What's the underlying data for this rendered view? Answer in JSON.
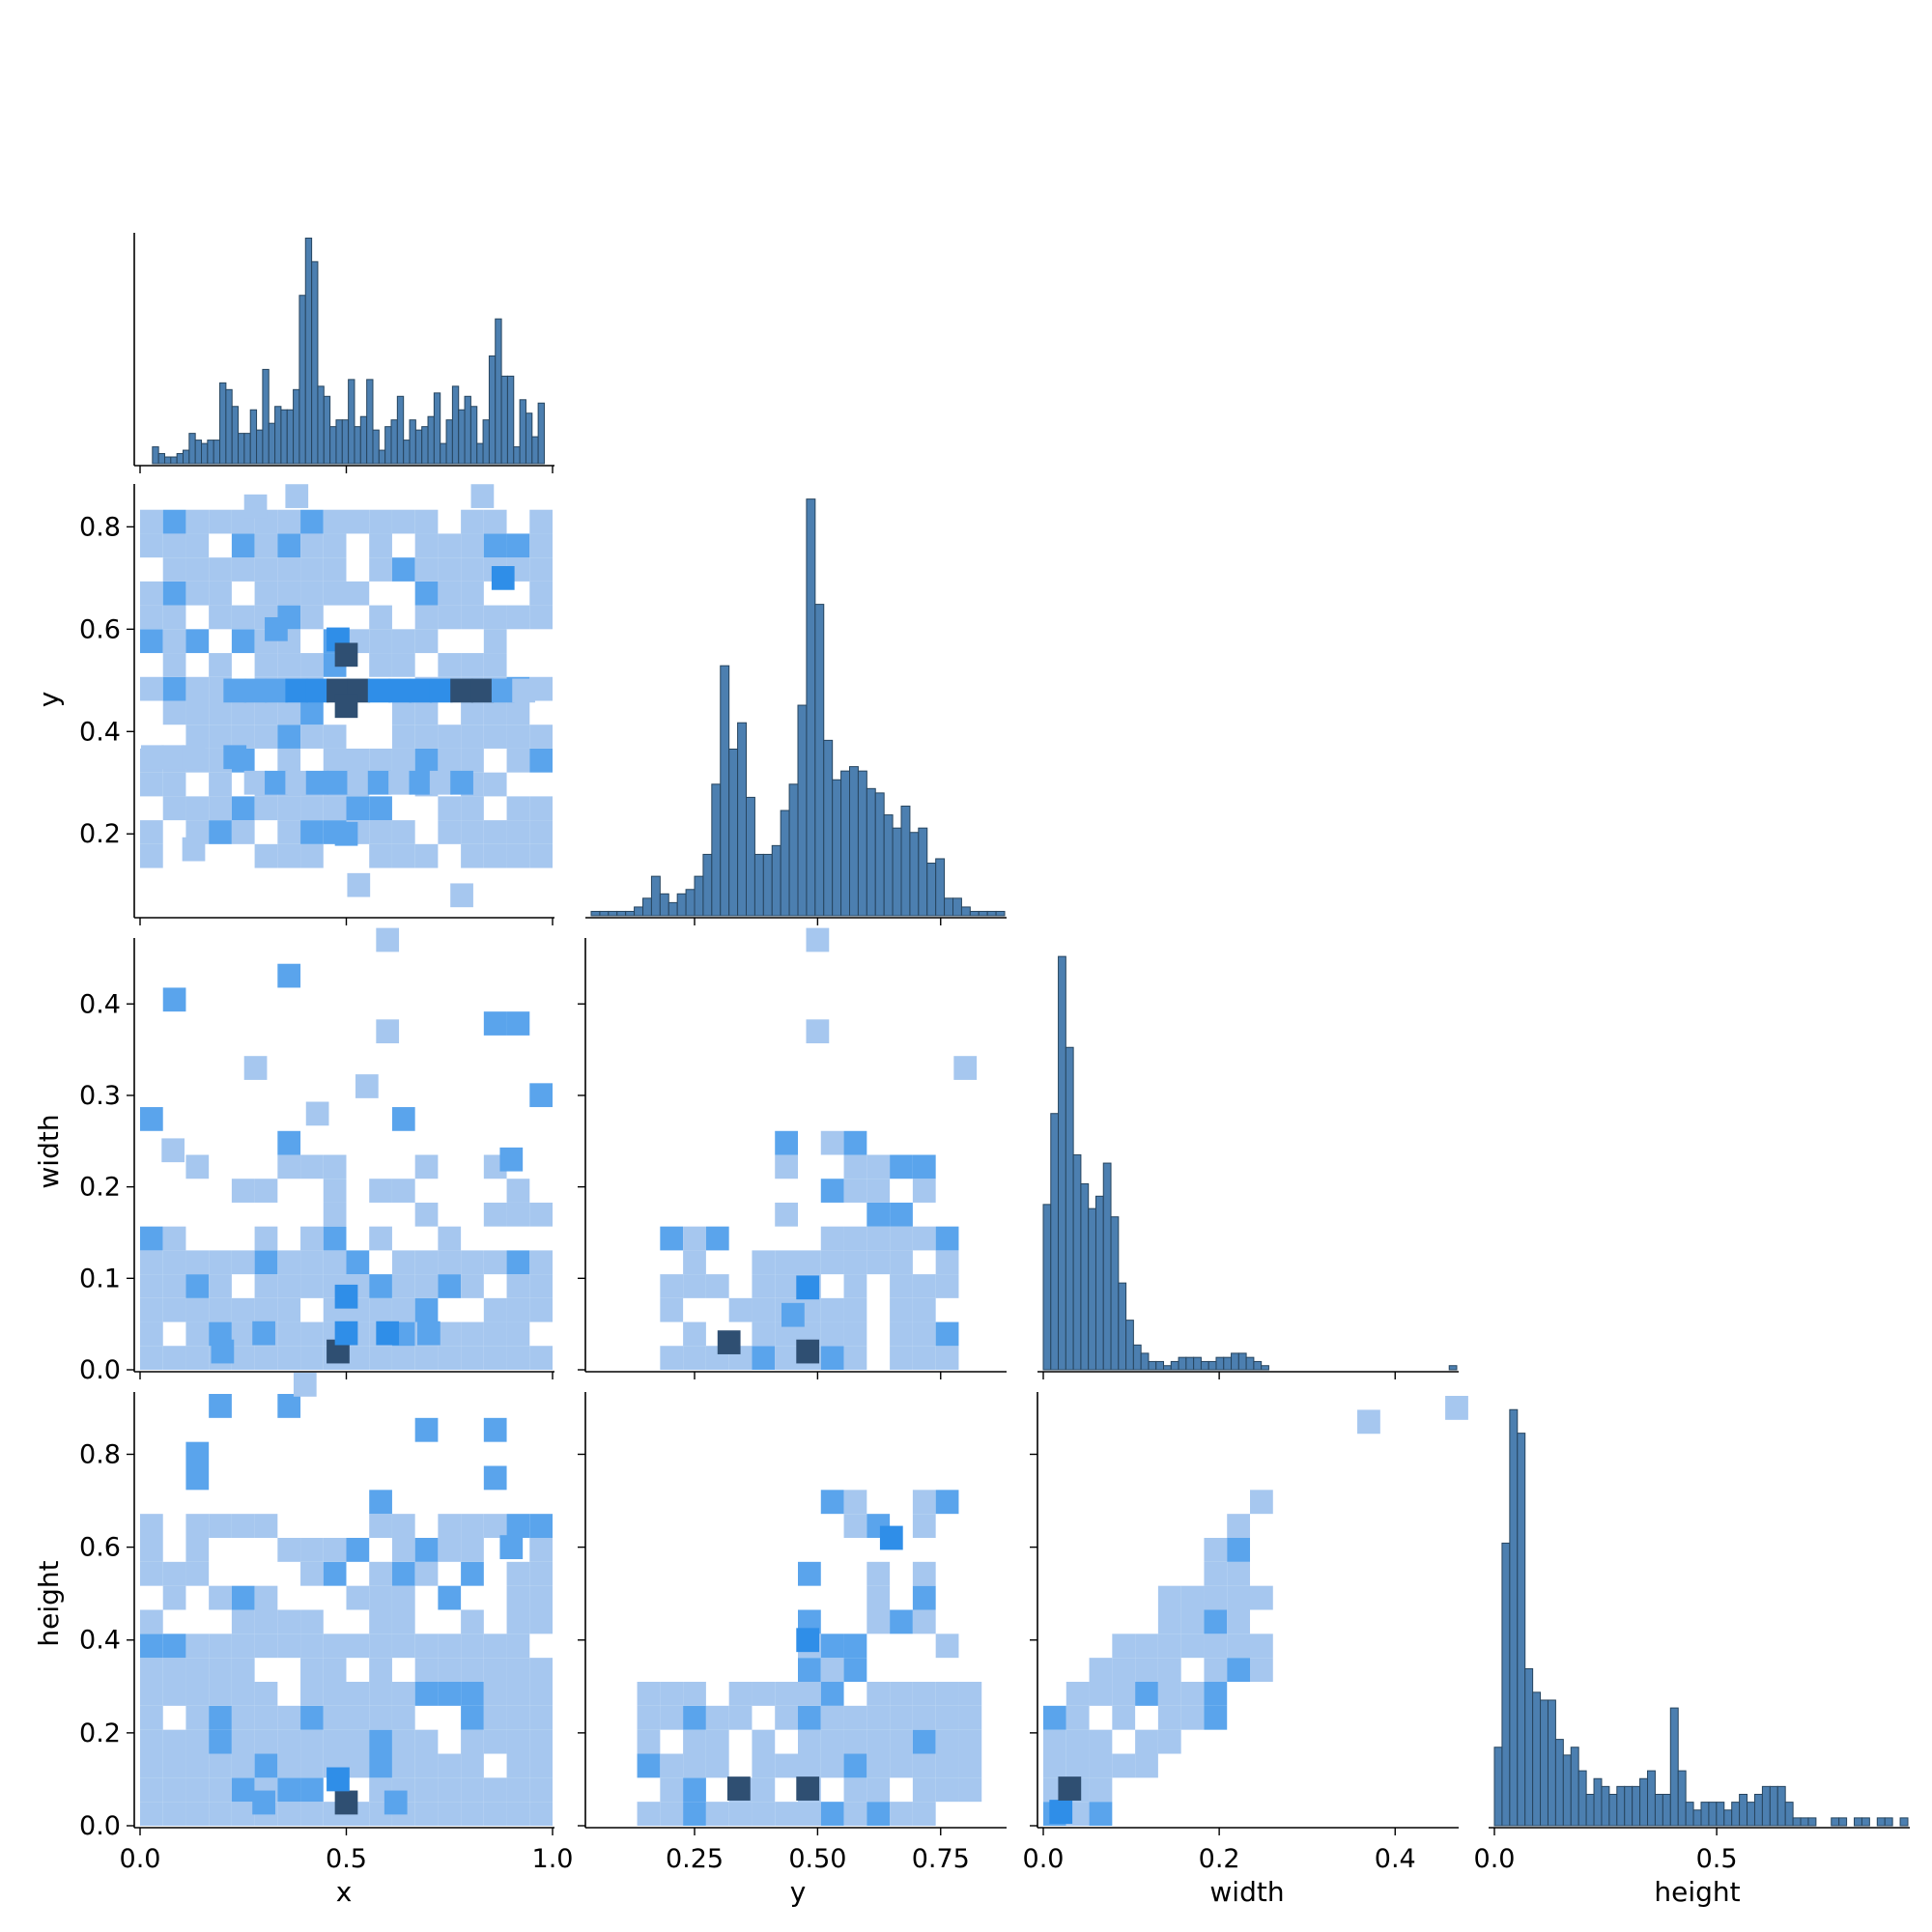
{
  "chart_data": {
    "type": "heatmap",
    "variables": [
      "x",
      "y",
      "width",
      "height"
    ],
    "ranges": {
      "x": [
        0.0,
        1.0
      ],
      "y": [
        0.04,
        0.88
      ],
      "width": [
        0.0,
        0.47
      ],
      "height": [
        0.0,
        0.93
      ]
    },
    "ticks": {
      "x": {
        "values": [
          0.0,
          0.5,
          1.0
        ],
        "labels": [
          "0.0",
          "0.5",
          "1.0"
        ]
      },
      "y_left": {
        "values": [
          0.2,
          0.4,
          0.6,
          0.8
        ],
        "labels": [
          "0.2",
          "0.4",
          "0.6",
          "0.8"
        ]
      },
      "y_bottom": {
        "values": [
          0.25,
          0.5,
          0.75
        ],
        "labels": [
          "0.25",
          "0.50",
          "0.75"
        ]
      },
      "width": {
        "values": [
          0.0,
          0.1,
          0.2,
          0.3,
          0.4
        ],
        "labels": [
          "0.0",
          "0.1",
          "0.2",
          "0.3",
          "0.4"
        ]
      },
      "width_bottom": {
        "values": [
          0.0,
          0.2,
          0.4
        ],
        "labels": [
          "0.0",
          "0.2",
          "0.4"
        ]
      },
      "height": {
        "values": [
          0.0,
          0.2,
          0.4,
          0.6,
          0.8
        ],
        "labels": [
          "0.0",
          "0.2",
          "0.4",
          "0.6",
          "0.8"
        ]
      },
      "height_bottom": {
        "values": [
          0.0,
          0.5
        ],
        "labels": [
          "0.0",
          "0.5"
        ]
      }
    },
    "histograms": {
      "x": {
        "range": [
          0.03,
          0.98
        ],
        "counts": [
          5,
          3,
          2,
          2,
          3,
          4,
          9,
          7,
          6,
          7,
          7,
          24,
          22,
          17,
          9,
          9,
          16,
          10,
          28,
          12,
          17,
          16,
          16,
          22,
          50,
          67,
          60,
          23,
          20,
          11,
          13,
          13,
          25,
          11,
          14,
          25,
          10,
          4,
          11,
          13,
          20,
          7,
          13,
          10,
          11,
          14,
          21,
          6,
          13,
          23,
          16,
          20,
          17,
          6,
          13,
          32,
          43,
          26,
          26,
          5,
          19,
          15,
          8,
          18
        ],
        "peak": 68
      },
      "y": {
        "range": [
          0.04,
          0.88
        ],
        "counts": [
          1,
          1,
          1,
          1,
          1,
          2,
          4,
          9,
          5,
          3,
          5,
          6,
          9,
          14,
          30,
          57,
          38,
          44,
          27,
          14,
          14,
          16,
          24,
          30,
          48,
          95,
          71,
          40,
          31,
          33,
          34,
          33,
          29,
          28,
          23,
          20,
          25,
          19,
          20,
          12,
          13,
          4,
          4,
          2,
          1,
          1,
          1,
          1
        ],
        "peak": 98
      },
      "width": {
        "range": [
          0.0,
          0.47
        ],
        "counts": [
          40,
          62,
          100,
          78,
          52,
          45,
          39,
          42,
          50,
          37,
          21,
          12,
          6,
          4,
          2,
          2,
          1,
          2,
          3,
          3,
          3,
          2,
          2,
          3,
          3,
          4,
          4,
          3,
          2,
          1,
          0,
          0,
          0,
          0,
          0,
          0,
          0,
          0,
          0,
          0,
          0,
          0,
          0,
          0,
          0,
          0,
          0,
          0,
          0,
          0,
          0,
          0,
          0,
          0,
          1
        ],
        "peak": 104
      },
      "height": {
        "range": [
          0.0,
          0.93
        ],
        "counts": [
          10,
          36,
          53,
          50,
          20,
          17,
          16,
          16,
          11,
          9,
          10,
          7,
          4,
          6,
          5,
          4,
          5,
          5,
          5,
          6,
          7,
          4,
          4,
          15,
          7,
          3,
          2,
          3,
          3,
          3,
          2,
          3,
          4,
          3,
          4,
          5,
          5,
          5,
          3,
          1,
          1,
          1,
          0,
          0,
          1,
          1,
          0,
          1,
          1,
          0,
          1,
          1,
          0,
          1
        ],
        "peak": 55
      }
    },
    "heatmap_cells": {
      "y_vs_x": [
        [
          0.03,
          0.35,
          1
        ],
        [
          0.08,
          0.35,
          1
        ],
        [
          0.13,
          0.35,
          1
        ],
        [
          0.23,
          0.35,
          2
        ],
        [
          0.28,
          0.3,
          1
        ],
        [
          0.33,
          0.3,
          2
        ],
        [
          0.38,
          0.3,
          1
        ],
        [
          0.43,
          0.3,
          2
        ],
        [
          0.48,
          0.3,
          2
        ],
        [
          0.53,
          0.3,
          1
        ],
        [
          0.58,
          0.3,
          2
        ],
        [
          0.63,
          0.3,
          1
        ],
        [
          0.68,
          0.3,
          2
        ],
        [
          0.73,
          0.3,
          1
        ],
        [
          0.78,
          0.3,
          2
        ],
        [
          0.23,
          0.48,
          2
        ],
        [
          0.28,
          0.48,
          2
        ],
        [
          0.33,
          0.48,
          2
        ],
        [
          0.38,
          0.48,
          3
        ],
        [
          0.43,
          0.48,
          3
        ],
        [
          0.48,
          0.48,
          4
        ],
        [
          0.53,
          0.48,
          4
        ],
        [
          0.58,
          0.48,
          3
        ],
        [
          0.63,
          0.48,
          3
        ],
        [
          0.68,
          0.48,
          3
        ],
        [
          0.73,
          0.48,
          3
        ],
        [
          0.78,
          0.48,
          4
        ],
        [
          0.83,
          0.48,
          4
        ],
        [
          0.88,
          0.48,
          2
        ],
        [
          0.93,
          0.48,
          1
        ],
        [
          0.48,
          0.58,
          3
        ],
        [
          0.5,
          0.55,
          4
        ],
        [
          0.5,
          0.45,
          4
        ],
        [
          0.88,
          0.7,
          3
        ],
        [
          0.33,
          0.6,
          2
        ],
        [
          0.5,
          0.2,
          2
        ],
        [
          0.13,
          0.17,
          1
        ],
        [
          0.53,
          0.1,
          1
        ],
        [
          0.78,
          0.08,
          1
        ],
        [
          0.38,
          0.86,
          1
        ],
        [
          0.83,
          0.86,
          1
        ],
        [
          0.28,
          0.84,
          1
        ]
      ],
      "width_vs_x": [
        [
          0.48,
          0.02,
          4
        ],
        [
          0.5,
          0.04,
          3
        ],
        [
          0.5,
          0.08,
          3
        ],
        [
          0.6,
          0.04,
          3
        ],
        [
          0.7,
          0.04,
          2
        ],
        [
          0.3,
          0.04,
          2
        ],
        [
          0.2,
          0.02,
          2
        ],
        [
          0.9,
          0.23,
          2
        ],
        [
          0.6,
          0.47,
          1
        ],
        [
          0.6,
          0.37,
          1
        ],
        [
          0.28,
          0.33,
          1
        ],
        [
          0.55,
          0.31,
          1
        ],
        [
          0.43,
          0.28,
          1
        ],
        [
          0.08,
          0.24,
          1
        ]
      ],
      "width_vs_y": [
        [
          0.32,
          0.03,
          4
        ],
        [
          0.48,
          0.02,
          4
        ],
        [
          0.48,
          0.09,
          3
        ],
        [
          0.45,
          0.06,
          2
        ],
        [
          0.5,
          0.47,
          1
        ],
        [
          0.5,
          0.37,
          1
        ],
        [
          0.8,
          0.33,
          1
        ]
      ],
      "height_vs_x": [
        [
          0.5,
          0.05,
          4
        ],
        [
          0.48,
          0.1,
          3
        ],
        [
          0.3,
          0.05,
          2
        ],
        [
          0.62,
          0.05,
          2
        ],
        [
          0.9,
          0.6,
          2
        ],
        [
          0.4,
          0.95,
          1
        ]
      ],
      "height_vs_y": [
        [
          0.34,
          0.08,
          4
        ],
        [
          0.48,
          0.08,
          4
        ],
        [
          0.48,
          0.4,
          3
        ],
        [
          0.65,
          0.62,
          3
        ]
      ],
      "height_vs_width": [
        [
          0.02,
          0.03,
          3
        ],
        [
          0.03,
          0.08,
          4
        ],
        [
          0.47,
          0.9,
          1
        ],
        [
          0.37,
          0.87,
          1
        ]
      ]
    },
    "xlabels": [
      "x",
      "y",
      "width",
      "height"
    ],
    "ylabels": [
      "",
      "y",
      "width",
      "height"
    ],
    "colors": {
      "bar_fill": "#4c7fb0",
      "bar_edge": "#27455f",
      "heat_light": "#a6c7ef",
      "heat_mid": "#5aa4ec",
      "heat_strong": "#2f8ee8",
      "heat_dark": "#2f4f72"
    }
  }
}
